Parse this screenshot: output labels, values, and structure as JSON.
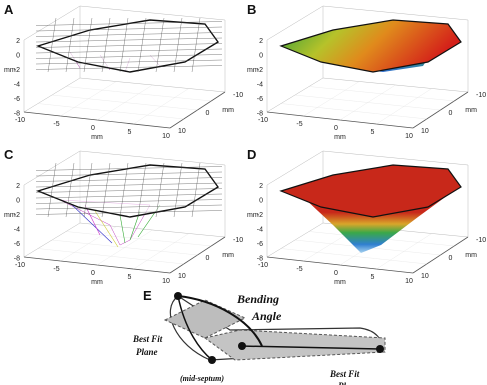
{
  "panels": [
    {
      "label": "A",
      "z_ticks": [
        "2",
        "0",
        "-2",
        "-4",
        "-6",
        "-8"
      ],
      "x_ticks": [
        "-10",
        "-5",
        "0",
        "5",
        "10"
      ],
      "y_ticks": [
        "10",
        "0",
        "-10"
      ],
      "z_unit": "mm",
      "x_unit": "mm",
      "y_unit": "mm"
    },
    {
      "label": "B",
      "z_ticks": [
        "2",
        "0",
        "-2",
        "-4",
        "-6",
        "-8"
      ],
      "x_ticks": [
        "-10",
        "-5",
        "0",
        "5",
        "10"
      ],
      "y_ticks": [
        "10",
        "0",
        "-10"
      ],
      "z_unit": "mm",
      "x_unit": "mm",
      "y_unit": "mm"
    },
    {
      "label": "C",
      "z_ticks": [
        "2",
        "0",
        "-2",
        "-4",
        "-6",
        "-8"
      ],
      "x_ticks": [
        "-10",
        "-5",
        "0",
        "5",
        "10"
      ],
      "y_ticks": [
        "10",
        "0",
        "-10"
      ],
      "z_unit": "mm",
      "x_unit": "mm",
      "y_unit": "mm"
    },
    {
      "label": "D",
      "z_ticks": [
        "2",
        "0",
        "-2",
        "-4",
        "-6",
        "-8"
      ],
      "x_ticks": [
        "-10",
        "-5",
        "0",
        "5",
        "10"
      ],
      "y_ticks": [
        "10",
        "0",
        "-10"
      ],
      "z_unit": "mm",
      "x_unit": "mm",
      "y_unit": "mm"
    }
  ],
  "panel_e": {
    "label": "E",
    "bending": "Bending",
    "angle": "Angle",
    "best_fit_left": "Best Fit",
    "plane_left": "Plane",
    "mid_septum": "(mid-septum)",
    "best_fit_right": "Best Fit",
    "plane_right": "Pl"
  }
}
